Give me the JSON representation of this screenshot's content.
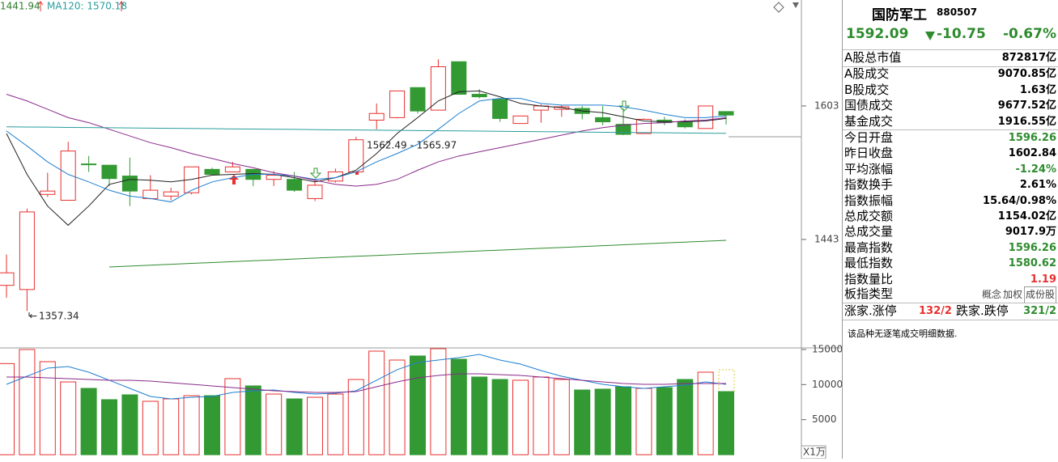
{
  "chart_data": [
    {
      "type": "candlestick",
      "up_color": "#e8302f",
      "down_color": "#339933",
      "ylim": [
        1313,
        1730
      ],
      "yticks": [
        1443,
        1603
      ],
      "header_labels": [
        {
          "text": "1441.94",
          "color": "#2e7d2e"
        },
        {
          "text": "MA120: 1570.18",
          "color": "#2a9d9d"
        }
      ],
      "range_label": "1562.49 - 1565.97",
      "open": [
        1388,
        1383,
        1497,
        1490,
        1533.5,
        1532,
        1519,
        1492,
        1495,
        1499,
        1527,
        1524,
        1527,
        1515,
        1515,
        1492,
        1513,
        1524,
        1586,
        1589,
        1625,
        1598,
        1656,
        1617,
        1611,
        1582,
        1598,
        1599,
        1600,
        1589,
        1581,
        1570,
        1586,
        1584,
        1576,
        1596.26
      ],
      "high": [
        1425,
        1480,
        1523,
        1560,
        1543,
        1532,
        1541,
        1520,
        1505,
        1530,
        1529,
        1536,
        1527,
        1525,
        1524,
        1515,
        1528,
        1565.97,
        1606,
        1621,
        1625,
        1659,
        1656,
        1623,
        1612,
        1591,
        1605,
        1604,
        1603,
        1603,
        1600,
        1588,
        1590,
        1587,
        1603,
        1596.26
      ],
      "low": [
        1373,
        1357.34,
        1494,
        1490,
        1524,
        1507,
        1483,
        1491,
        1490,
        1497,
        1520,
        1524,
        1507,
        1507,
        1500,
        1489,
        1511,
        1524,
        1575,
        1588,
        1594,
        1598,
        1617,
        1612,
        1584,
        1582,
        1583,
        1590,
        1587,
        1580,
        1568,
        1570,
        1580,
        1576,
        1576,
        1580.62
      ],
      "close": [
        1403,
        1476,
        1501,
        1549,
        1533,
        1516,
        1501,
        1502,
        1500,
        1530,
        1521,
        1530,
        1515,
        1520,
        1502,
        1508,
        1524,
        1562.49,
        1594,
        1621,
        1597,
        1650,
        1617,
        1614,
        1588,
        1591,
        1603,
        1602,
        1594,
        1584,
        1569,
        1587,
        1583,
        1578,
        1603,
        1592.09
      ],
      "series": [
        {
          "color": "#222222",
          "values": [
            1570,
            1521,
            1483,
            1460,
            1483,
            1509,
            1515,
            1514,
            1512,
            1515,
            1520,
            1521,
            1522,
            1521,
            1517,
            1512,
            1517,
            1526,
            1546,
            1570,
            1589,
            1609,
            1620,
            1621,
            1614,
            1606,
            1603,
            1601,
            1597,
            1595,
            1590,
            1585,
            1584,
            1584,
            1585,
            1588
          ]
        },
        {
          "color": "#1e7fd0",
          "values": [
            1573,
            1555,
            1536,
            1521,
            1512,
            1502,
            1495,
            1492,
            1488,
            1502,
            1512,
            1517,
            1521,
            1521,
            1519,
            1515,
            1517,
            1524,
            1536,
            1546,
            1557,
            1575,
            1594,
            1609,
            1612,
            1612,
            1606,
            1604,
            1604,
            1604,
            1602,
            1598,
            1593,
            1589,
            1589,
            1591
          ]
        },
        {
          "color": "#8a2a8a",
          "values": [
            1617,
            1609,
            1599,
            1589,
            1583,
            1575,
            1567,
            1559,
            1553,
            1546,
            1540,
            1534,
            1529,
            1523,
            1519,
            1514,
            1509,
            1507,
            1509,
            1515,
            1526,
            1536,
            1543,
            1548,
            1553,
            1558,
            1563,
            1568,
            1573,
            1577,
            1580,
            1582,
            1583,
            1585,
            1586,
            1589
          ]
        },
        {
          "color": "#2a9d9d",
          "values": [
            1578,
            1577.8,
            1577.6,
            1577.3,
            1577.1,
            1576.9,
            1576.7,
            1576.4,
            1576.2,
            1576,
            1575.8,
            1575.5,
            1575.3,
            1575.1,
            1574.9,
            1574.6,
            1574.4,
            1574.2,
            1574,
            1573.8,
            1573.5,
            1573.3,
            1573.1,
            1572.9,
            1572.6,
            1572.4,
            1572.2,
            1572,
            1571.7,
            1571.5,
            1571.3,
            1571.1,
            1570.8,
            1570.6,
            1570.4,
            1570.18
          ]
        },
        {
          "color": "#2e8b2e",
          "values": [
            null,
            null,
            null,
            null,
            null,
            1410,
            1411.1,
            1412.1,
            1413.2,
            1414.3,
            1415.3,
            1416.4,
            1417.5,
            1418.5,
            1419.6,
            1420.7,
            1421.7,
            1422.8,
            1423.8,
            1424.9,
            1426,
            1427,
            1428.1,
            1429.2,
            1430.2,
            1431.3,
            1432.4,
            1433.4,
            1434.5,
            1435.6,
            1436.6,
            1437.7,
            1438.8,
            1439.8,
            1440.9,
            1441.94
          ]
        }
      ]
    },
    {
      "type": "bar",
      "ylim": [
        0,
        15000
      ],
      "yticks": [
        5000,
        10000,
        15000
      ],
      "unit": "X1万",
      "values": [
        13000,
        15000,
        13270,
        10380,
        9460,
        7850,
        8540,
        7620,
        7960,
        8420,
        8420,
        10850,
        9810,
        8650,
        7960,
        8190,
        8650,
        10730,
        14770,
        13500,
        14080,
        15120,
        13620,
        11080,
        10730,
        10620,
        11080,
        10730,
        9230,
        9350,
        9690,
        9460,
        9580,
        10730,
        11770,
        9000
      ],
      "series": [
        {
          "color": "#1e7fd0",
          "values": [
            10040,
            11190,
            12350,
            12580,
            11770,
            10620,
            9460,
            8310,
            7960,
            8190,
            8310,
            8880,
            9120,
            9230,
            8880,
            8650,
            8770,
            9120,
            10620,
            12120,
            13150,
            13500,
            13850,
            14310,
            13500,
            12920,
            12000,
            11190,
            10620,
            10040,
            9690,
            9460,
            9690,
            9920,
            10380,
            10040
          ]
        },
        {
          "color": "#8a2a8a",
          "values": [
            11080,
            11080,
            10960,
            10850,
            10730,
            10620,
            10620,
            10500,
            10270,
            10040,
            9810,
            9580,
            9350,
            9120,
            9000,
            8890,
            8890,
            9000,
            9690,
            10390,
            10960,
            11310,
            11540,
            11540,
            11420,
            11310,
            11080,
            10850,
            10620,
            10390,
            10160,
            10040,
            10040,
            10160,
            10160,
            10160
          ]
        }
      ]
    }
  ],
  "panel": {
    "title": "国防军工",
    "code": "880507",
    "price": "1592.09",
    "change": "-10.75",
    "change_pct": "-0.67%",
    "rows": [
      {
        "label": "A股总市值",
        "value": "872817亿",
        "color": "#000"
      },
      {
        "label": "A股成交",
        "value": "9070.85亿",
        "color": "#000"
      },
      {
        "label": "B股成交",
        "value": "1.63亿",
        "color": "#000"
      },
      {
        "label": "国债成交",
        "value": "9677.52亿",
        "color": "#000"
      },
      {
        "label": "基金成交",
        "value": "1916.55亿",
        "color": "#000"
      },
      {
        "label": "今日开盘",
        "value": "1596.26",
        "color": "#2e8b2e"
      },
      {
        "label": "昨日收盘",
        "value": "1602.84",
        "color": "#000"
      },
      {
        "label": "平均涨幅",
        "value": "-1.24%",
        "color": "#2e8b2e"
      },
      {
        "label": "指数换手",
        "value": "2.61%",
        "color": "#000"
      },
      {
        "label": "指数振幅",
        "value": "15.64/0.98%",
        "color": "#000"
      },
      {
        "label": "总成交额",
        "value": "1154.02亿",
        "color": "#000"
      },
      {
        "label": "总成交量",
        "value": "9017.9万",
        "color": "#000"
      },
      {
        "label": "最高指数",
        "value": "1596.26",
        "color": "#2e8b2e"
      },
      {
        "label": "最低指数",
        "value": "1580.62",
        "color": "#2e8b2e"
      },
      {
        "label": "指数量比",
        "value": "1.19",
        "color": "#e8302f"
      }
    ],
    "sector_type": {
      "label": "板指类型",
      "options": [
        "概念",
        "加权",
        "成份股"
      ]
    },
    "breadth": {
      "up_label": "涨家.涨停",
      "up_value": "132/2",
      "down_label": "跌家.跌停",
      "down_value": "321/2"
    },
    "note": "该品种无逐笔成交明细数据."
  }
}
